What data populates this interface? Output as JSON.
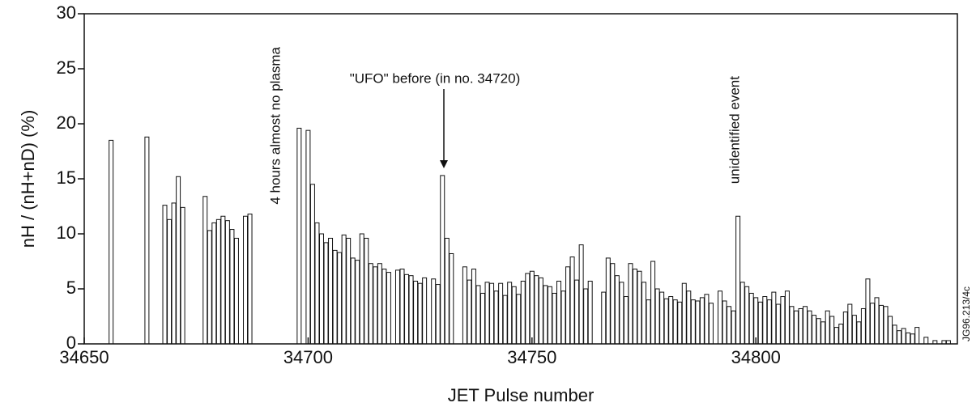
{
  "chart_data": {
    "type": "bar",
    "x_label": "JET Pulse number",
    "y_label": "nH / (nH+nD) (%)",
    "annotations": [
      "4 hours almost no plasma",
      "\"UFO\" before (in no. 34720)",
      "unidentified event",
      "JG96.213/4c"
    ],
    "color": "#ffffff",
    "xlim": [
      34650,
      34845
    ],
    "ylim": [
      0,
      30
    ],
    "xticks": [
      34650,
      34700,
      34750,
      34800
    ],
    "yticks": [
      0,
      5,
      10,
      15,
      20,
      25,
      30
    ],
    "x": [
      34656,
      34664,
      34668,
      34669,
      34670,
      34671,
      34672,
      34677,
      34678,
      34679,
      34680,
      34681,
      34682,
      34683,
      34684,
      34686,
      34687,
      34698,
      34700,
      34701,
      34702,
      34703,
      34704,
      34705,
      34706,
      34707,
      34708,
      34709,
      34710,
      34711,
      34712,
      34713,
      34714,
      34715,
      34716,
      34717,
      34718,
      34720,
      34721,
      34722,
      34723,
      34724,
      34725,
      34726,
      34728,
      34729,
      34730,
      34731,
      34732,
      34735,
      34736,
      34737,
      34738,
      34739,
      34740,
      34741,
      34742,
      34743,
      34744,
      34745,
      34746,
      34747,
      34748,
      34749,
      34750,
      34751,
      34752,
      34753,
      34754,
      34755,
      34756,
      34757,
      34758,
      34759,
      34760,
      34761,
      34762,
      34763,
      34766,
      34767,
      34768,
      34769,
      34770,
      34771,
      34772,
      34773,
      34774,
      34775,
      34776,
      34777,
      34778,
      34779,
      34780,
      34781,
      34782,
      34783,
      34784,
      34785,
      34786,
      34787,
      34788,
      34789,
      34790,
      34792,
      34793,
      34794,
      34795,
      34796,
      34797,
      34798,
      34799,
      34800,
      34801,
      34802,
      34803,
      34804,
      34805,
      34806,
      34807,
      34808,
      34809,
      34810,
      34811,
      34812,
      34813,
      34814,
      34815,
      34816,
      34817,
      34818,
      34819,
      34820,
      34821,
      34822,
      34823,
      34824,
      34825,
      34826,
      34827,
      34828,
      34829,
      34830,
      34831,
      34832,
      34833,
      34834,
      34835,
      34836,
      34838,
      34840,
      34842,
      34843
    ],
    "values": [
      18.5,
      18.8,
      12.6,
      11.3,
      12.8,
      15.2,
      12.4,
      13.4,
      10.3,
      11.0,
      11.3,
      11.6,
      11.2,
      10.4,
      9.6,
      11.6,
      11.8,
      19.6,
      19.4,
      14.5,
      11.0,
      10.0,
      9.2,
      9.6,
      8.5,
      8.3,
      9.9,
      9.6,
      7.8,
      7.6,
      10.0,
      9.6,
      7.3,
      7.0,
      7.3,
      6.8,
      6.5,
      6.7,
      6.8,
      6.3,
      6.2,
      5.7,
      5.5,
      6.0,
      5.9,
      5.4,
      15.3,
      9.6,
      8.2,
      7.0,
      5.8,
      6.8,
      5.3,
      4.6,
      5.6,
      5.5,
      4.8,
      5.5,
      4.4,
      5.6,
      5.2,
      4.5,
      5.7,
      6.4,
      6.6,
      6.2,
      6.0,
      5.3,
      5.2,
      4.6,
      5.7,
      4.8,
      7.0,
      7.9,
      5.8,
      9.0,
      5.0,
      5.7,
      4.7,
      7.8,
      7.3,
      6.2,
      5.6,
      4.3,
      7.3,
      6.8,
      6.6,
      5.6,
      4.0,
      7.5,
      5.0,
      4.7,
      4.1,
      4.3,
      4.0,
      3.8,
      5.5,
      4.8,
      4.0,
      3.9,
      4.2,
      4.5,
      3.7,
      4.8,
      3.9,
      3.4,
      3.0,
      11.6,
      5.6,
      5.2,
      4.6,
      4.2,
      3.8,
      4.3,
      4.0,
      4.7,
      3.6,
      4.3,
      4.8,
      3.4,
      3.0,
      3.2,
      3.4,
      3.0,
      2.6,
      2.3,
      2.0,
      3.0,
      2.5,
      1.5,
      1.8,
      2.9,
      3.6,
      2.6,
      2.0,
      3.2,
      5.9,
      3.7,
      4.2,
      3.5,
      3.4,
      2.5,
      1.7,
      1.2,
      1.4,
      1.0,
      0.9,
      1.5,
      0.6,
      0.3,
      0.3,
      0.3
    ]
  }
}
